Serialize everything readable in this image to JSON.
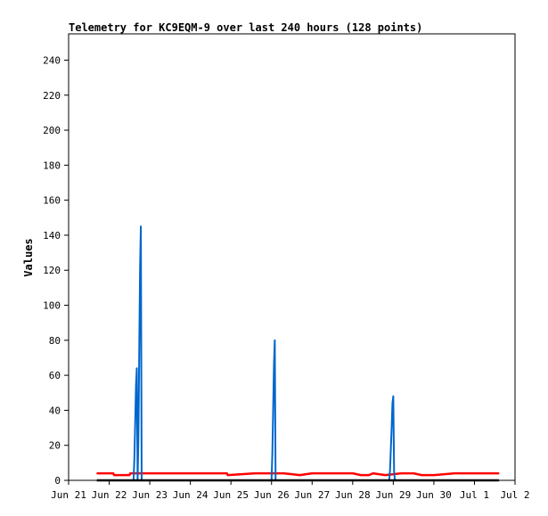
{
  "chart_data": {
    "type": "line",
    "title": "Telemetry for KC9EQM-9 over last 240 hours (128 points)",
    "xlabel": "",
    "ylabel": "Values",
    "ylim": [
      0,
      255
    ],
    "y_ticks": [
      0,
      20,
      40,
      60,
      80,
      100,
      120,
      140,
      160,
      180,
      200,
      220,
      240
    ],
    "x_tick_labels": [
      "Jun 21",
      "Jun 22",
      "Jun 23",
      "Jun 24",
      "Jun 25",
      "Jun 26",
      "Jun 27",
      "Jun 28",
      "Jun 29",
      "Jun 30",
      "Jul 1",
      "Jul 2"
    ],
    "x_range_days": [
      0,
      11
    ],
    "grid": false,
    "series": [
      {
        "color": "#ff0000",
        "x": [
          0.7,
          1.1,
          1.12,
          1.5,
          1.52,
          2.2,
          3.0,
          3.9,
          3.92,
          4.6,
          5.0,
          5.3,
          5.7,
          6.0,
          6.5,
          7.0,
          7.2,
          7.4,
          7.5,
          7.8,
          8.2,
          8.5,
          8.7,
          9.0,
          9.5,
          10.0,
          10.6
        ],
        "values": [
          4,
          4,
          3,
          3,
          4,
          4,
          4,
          4,
          3,
          4,
          4,
          4,
          3,
          4,
          4,
          4,
          3,
          3,
          4,
          3,
          4,
          4,
          3,
          3,
          4,
          4,
          4
        ]
      },
      {
        "color": "#0066cc",
        "x": [
          0.7,
          1.6,
          1.62,
          1.64,
          1.66,
          1.68,
          1.7,
          1.72,
          1.74,
          1.76,
          1.78,
          1.8,
          1.82,
          1.84,
          5.0,
          5.02,
          5.04,
          5.06,
          5.08,
          5.1,
          7.9,
          7.92,
          7.94,
          7.96,
          7.98,
          8.0,
          8.02,
          8.04,
          10.6
        ],
        "values": [
          0,
          0,
          12,
          32,
          54,
          64,
          0,
          25,
          73,
          120,
          145,
          0,
          0,
          0,
          0,
          15,
          40,
          66,
          80,
          0,
          0,
          6,
          18,
          30,
          44,
          48,
          5,
          0,
          0
        ]
      },
      {
        "color": "#000000",
        "x": [
          0.7,
          10.6
        ],
        "values": [
          0,
          0
        ]
      }
    ]
  }
}
